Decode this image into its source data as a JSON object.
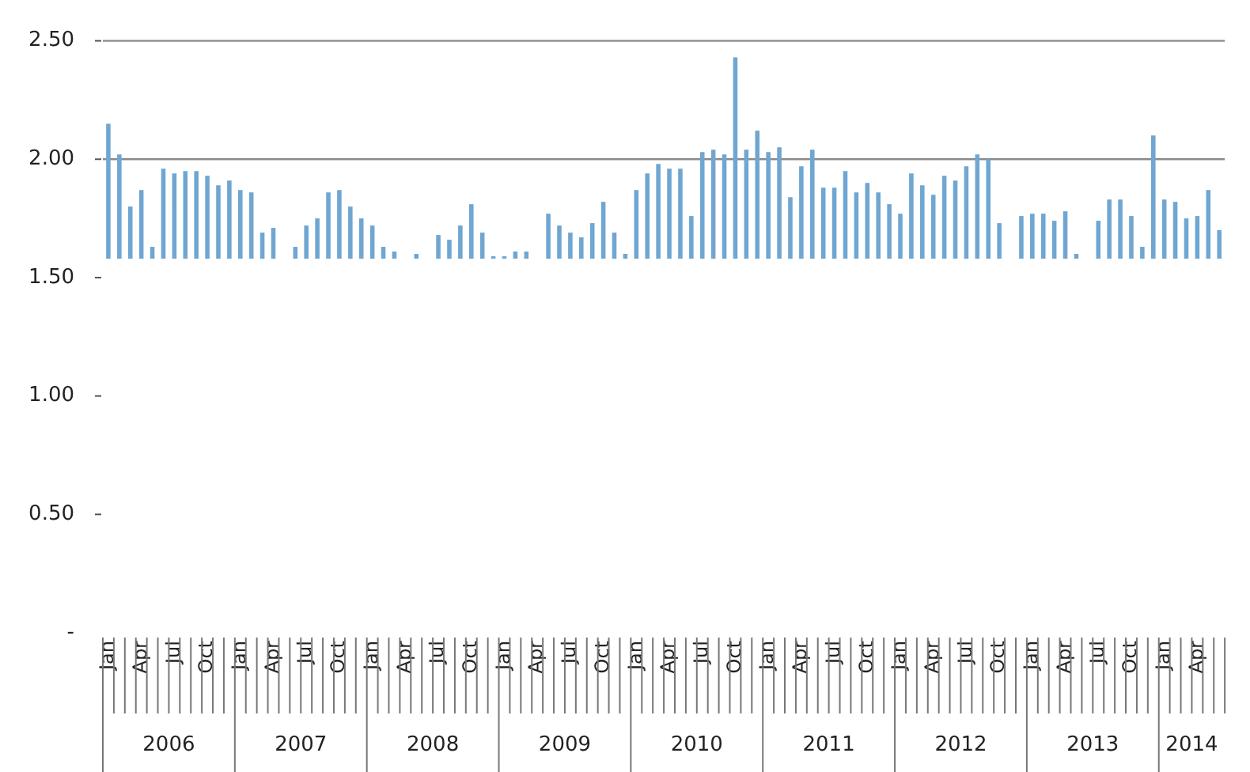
{
  "chart_data": {
    "type": "bar",
    "categories": [
      "Jan",
      null,
      null,
      "Apr",
      null,
      null,
      "Jul",
      null,
      null,
      "Oct",
      null,
      null,
      "Jan",
      null,
      null,
      "Apr",
      null,
      null,
      "Jul",
      null,
      null,
      "Oct",
      null,
      null,
      "Jan",
      null,
      null,
      "Apr",
      null,
      null,
      "Jul",
      null,
      null,
      "Oct",
      null,
      null,
      "Jan",
      null,
      null,
      "Apr",
      null,
      null,
      "Jul",
      null,
      null,
      "Oct",
      null,
      null,
      "Jan",
      null,
      null,
      "Apr",
      null,
      null,
      "Jul",
      null,
      null,
      "Oct",
      null,
      null,
      "Jan",
      null,
      null,
      "Apr",
      null,
      null,
      "Jul",
      null,
      null,
      "Oct",
      null,
      null,
      "Jan",
      null,
      null,
      "Apr",
      null,
      null,
      "Jul",
      null,
      null,
      "Oct",
      null,
      null,
      "Jan",
      null,
      null,
      "Apr",
      null,
      null,
      "Jul",
      null,
      null,
      "Oct",
      null,
      null,
      "Jan",
      null,
      null,
      "Apr",
      null,
      null
    ],
    "values": [
      0.57,
      0.44,
      0.22,
      0.29,
      0.05,
      0.38,
      0.36,
      0.37,
      0.37,
      0.35,
      0.31,
      0.33,
      0.29,
      0.28,
      0.11,
      0.13,
      null,
      0.05,
      0.14,
      0.17,
      0.28,
      0.29,
      0.22,
      0.17,
      0.14,
      0.05,
      0.03,
      null,
      0.02,
      null,
      0.1,
      0.08,
      0.14,
      0.23,
      0.11,
      0.01,
      0.01,
      0.03,
      0.03,
      null,
      0.19,
      0.14,
      0.11,
      0.09,
      0.15,
      0.24,
      0.11,
      0.02,
      0.29,
      0.36,
      0.4,
      0.38,
      0.38,
      0.18,
      0.45,
      0.46,
      0.44,
      0.85,
      0.46,
      0.54,
      0.45,
      0.47,
      0.26,
      0.39,
      0.46,
      0.3,
      0.3,
      0.37,
      0.28,
      0.32,
      0.28,
      0.23,
      0.19,
      0.36,
      0.31,
      0.27,
      0.35,
      0.33,
      0.39,
      0.44,
      0.42,
      0.15,
      null,
      0.18,
      0.19,
      0.19,
      0.16,
      0.2,
      0.02,
      null,
      0.16,
      0.25,
      0.25,
      0.18,
      0.05,
      0.52,
      0.25,
      0.24,
      0.17,
      0.18,
      0.29,
      0.12
    ],
    "base": [
      1.58,
      1.58,
      1.58,
      1.58,
      1.58,
      1.58,
      1.58,
      1.58,
      1.58,
      1.58,
      1.58,
      1.58,
      1.58,
      1.58,
      1.58,
      1.58,
      null,
      1.58,
      1.58,
      1.58,
      1.58,
      1.58,
      1.58,
      1.58,
      1.58,
      1.58,
      1.58,
      null,
      1.58,
      null,
      1.58,
      1.58,
      1.58,
      1.58,
      1.58,
      1.58,
      1.58,
      1.58,
      1.58,
      null,
      1.58,
      1.58,
      1.58,
      1.58,
      1.58,
      1.58,
      1.58,
      1.58,
      1.58,
      1.58,
      1.58,
      1.58,
      1.58,
      1.58,
      1.58,
      1.58,
      1.58,
      1.58,
      1.58,
      1.58,
      1.58,
      1.58,
      1.58,
      1.58,
      1.58,
      1.58,
      1.58,
      1.58,
      1.58,
      1.58,
      1.58,
      1.58,
      1.58,
      1.58,
      1.58,
      1.58,
      1.58,
      1.58,
      1.58,
      1.58,
      1.58,
      1.58,
      null,
      1.58,
      1.58,
      1.58,
      1.58,
      1.58,
      1.58,
      null,
      1.58,
      1.58,
      1.58,
      1.58,
      1.58,
      1.58,
      1.58,
      1.58,
      1.58,
      1.58,
      1.58,
      1.58
    ],
    "color": "#6fa6d2",
    "ylim": [
      0,
      2.5
    ],
    "yticks": [
      {
        "value": 0,
        "label": "-"
      },
      {
        "value": 0.5,
        "label": "0.50"
      },
      {
        "value": 1,
        "label": "1.00"
      },
      {
        "value": 1.5,
        "label": "1.50"
      },
      {
        "value": 2,
        "label": "2.00"
      },
      {
        "value": 2.5,
        "label": "2.50"
      }
    ],
    "ref_lines": [
      {
        "axis": "y",
        "value": 2,
        "color": "#8a8a8a"
      }
    ],
    "annotations": [
      "2006",
      "2007",
      "2008",
      "2009",
      "2010",
      "2011",
      "2012",
      "2013",
      "2014"
    ],
    "grid": false,
    "legend": false
  }
}
